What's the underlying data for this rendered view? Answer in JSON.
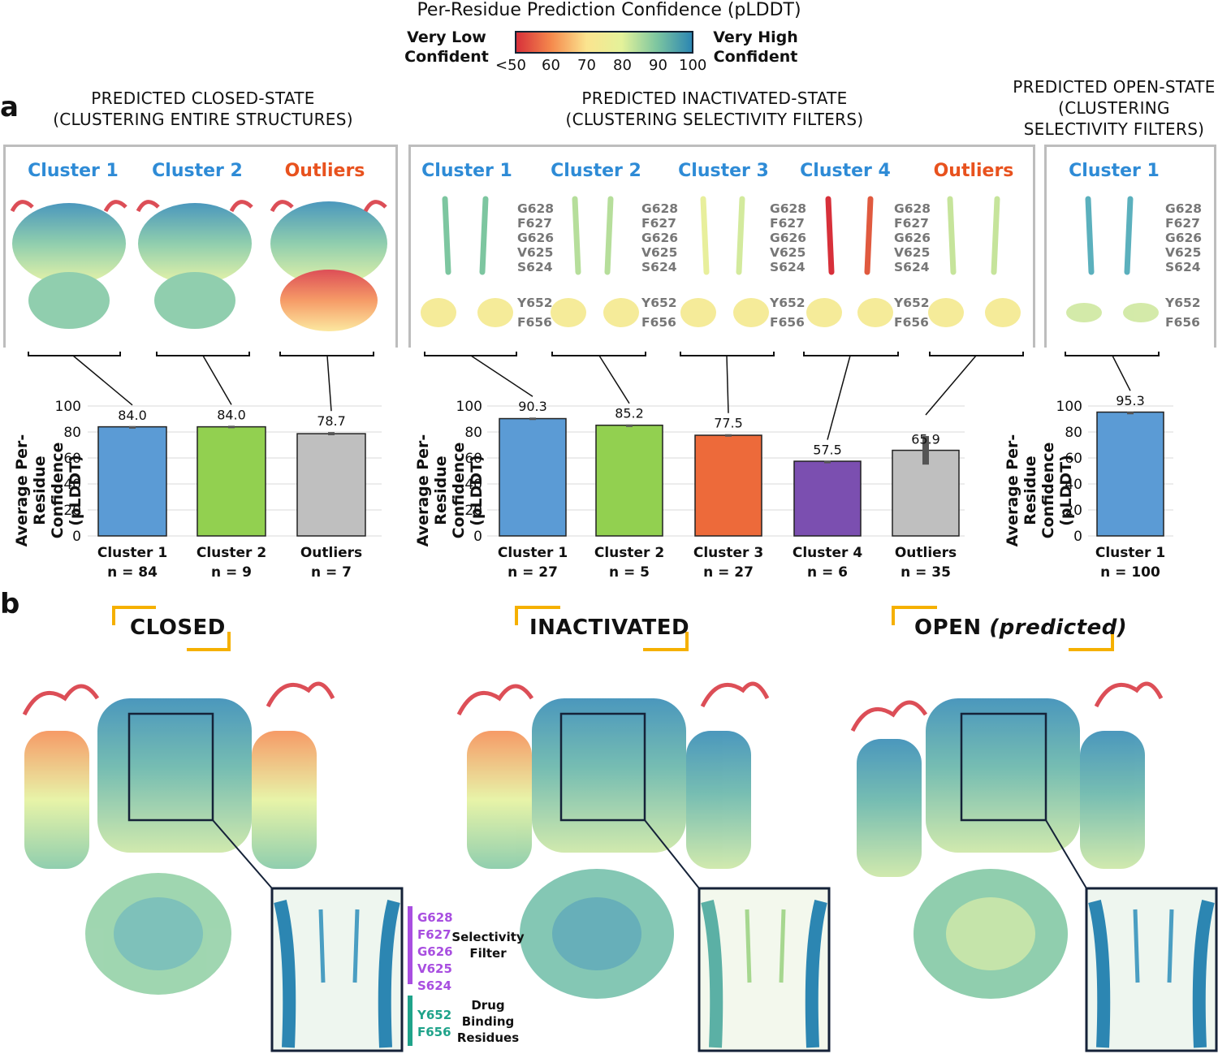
{
  "legend": {
    "title": "Per-Residue Prediction Confidence (pLDDT)",
    "low_label_line1": "Very Low",
    "low_label_line2": "Confident",
    "high_label_line1": "Very High",
    "high_label_line2": "Confident",
    "ticks": [
      "<50",
      "60",
      "70",
      "80",
      "90",
      "100"
    ],
    "colors": [
      "#d7303a",
      "#f58a4d",
      "#fbe48f",
      "#e4f29a",
      "#7dc6a0",
      "#2c86b2"
    ]
  },
  "panel_a": {
    "letter": "a",
    "closed_header_line1": "PREDICTED CLOSED-STATE",
    "closed_header_line2": "(CLUSTERING ENTIRE STRUCTURES)",
    "inact_header_line1": "PREDICTED INACTIVATED-STATE",
    "inact_header_line2": "(CLUSTERING SELECTIVITY FILTERS)",
    "open_header_line1": "PREDICTED OPEN-STATE",
    "open_header_line2": "(CLUSTERING",
    "open_header_line3": "SELECTIVITY FILTERS)",
    "closed_clusters": [
      "Cluster 1",
      "Cluster 2",
      "Outliers"
    ],
    "inact_clusters": [
      "Cluster 1",
      "Cluster 2",
      "Cluster 3",
      "Cluster 4",
      "Outliers"
    ],
    "open_clusters": [
      "Cluster 1"
    ],
    "sf_residues": [
      "G628",
      "F627",
      "G626",
      "V625",
      "S624"
    ],
    "drug_residues": [
      "Y652",
      "F656"
    ],
    "ylabel_line1": "Average Per-Residue",
    "ylabel_line2": "Confidence (pLDDT)",
    "yticks": [
      "100",
      "80",
      "60",
      "40",
      "20",
      "0"
    ]
  },
  "chart_data": [
    {
      "type": "bar",
      "title": "PREDICTED CLOSED-STATE (CLUSTERING ENTIRE STRUCTURES)",
      "ylabel": "Average Per-Residue Confidence (pLDDT)",
      "ylim": [
        0,
        100
      ],
      "categories": [
        "Cluster 1",
        "Cluster 2",
        "Outliers"
      ],
      "n_labels": [
        "n = 84",
        "n = 9",
        "n = 7"
      ],
      "values": [
        84.0,
        84.0,
        78.7
      ],
      "value_labels": [
        "84.0",
        "84.0",
        "78.7"
      ],
      "errors": [
        0.5,
        0.8,
        1.2
      ],
      "colors": [
        "#5b9bd5",
        "#92d050",
        "#bfbfbf"
      ]
    },
    {
      "type": "bar",
      "title": "PREDICTED INACTIVATED-STATE (CLUSTERING SELECTIVITY FILTERS)",
      "ylabel": "Average Per-Residue Confidence (pLDDT)",
      "ylim": [
        0,
        100
      ],
      "categories": [
        "Cluster 1",
        "Cluster 2",
        "Cluster 3",
        "Cluster 4",
        "Outliers"
      ],
      "n_labels": [
        "n = 27",
        "n = 5",
        "n = 27",
        "n = 6",
        "n = 35"
      ],
      "values": [
        90.3,
        85.2,
        77.5,
        57.5,
        65.9
      ],
      "value_labels": [
        "90.3",
        "85.2",
        "77.5",
        "57.5",
        "65.9"
      ],
      "errors": [
        0.8,
        0.6,
        0.8,
        0.3,
        11
      ],
      "colors": [
        "#5b9bd5",
        "#92d050",
        "#ed6a3a",
        "#7b4fb0",
        "#bfbfbf"
      ]
    },
    {
      "type": "bar",
      "title": "PREDICTED OPEN-STATE (CLUSTERING SELECTIVITY FILTERS)",
      "ylabel": "Average Per-Residue Confidence (pLDDT)",
      "ylim": [
        0,
        100
      ],
      "categories": [
        "Cluster 1"
      ],
      "n_labels": [
        "n = 100"
      ],
      "values": [
        95.3
      ],
      "value_labels": [
        "95.3"
      ],
      "errors": [
        0.2
      ],
      "colors": [
        "#5b9bd5"
      ]
    }
  ],
  "panel_b": {
    "letter": "b",
    "closed": "CLOSED",
    "inactivated": "INACTIVATED",
    "open": "OPEN",
    "open_italic": "(predicted)",
    "sf_residues": [
      "G628",
      "F627",
      "G626",
      "V625",
      "S624"
    ],
    "drug_residues": [
      "Y652",
      "F656"
    ],
    "sf_label_line1": "Selectivity",
    "sf_label_line2": "Filter",
    "drug_label_line1": "Drug",
    "drug_label_line2": "Binding",
    "drug_label_line3": "Residues",
    "sf_color": "#a84ee0",
    "drug_color": "#1fa38a",
    "bracket_color": "#f5b000"
  }
}
